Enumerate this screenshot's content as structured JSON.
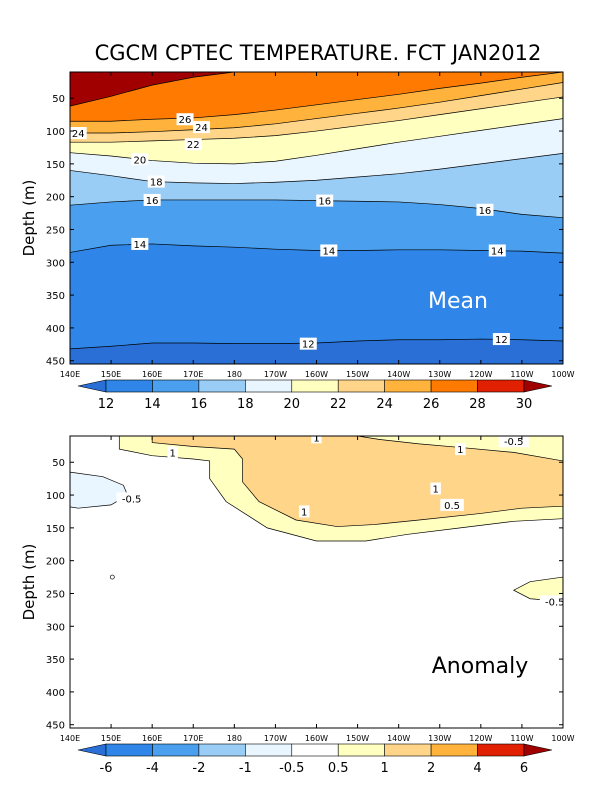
{
  "title": "CGCM CPTEC TEMPERATURE. FCT JAN2012",
  "chart_data": [
    {
      "type": "contour",
      "panel": "Mean",
      "label": "Mean",
      "ylabel": "Depth (m)",
      "xticks": [
        "140E",
        "150E",
        "160E",
        "170E",
        "180",
        "170W",
        "160W",
        "150W",
        "140W",
        "130W",
        "120W",
        "110W",
        "100W"
      ],
      "yticks": [
        "50",
        "100",
        "150",
        "200",
        "250",
        "300",
        "350",
        "400",
        "450"
      ],
      "xlim_lon": [
        140,
        260
      ],
      "ylim_depth": [
        455,
        10
      ],
      "levels": [
        12,
        14,
        16,
        18,
        20,
        22,
        24,
        26,
        28,
        30
      ],
      "colors": [
        "#2a6fd6",
        "#2f86e8",
        "#4aa0ee",
        "#99cdf6",
        "#e9f6ff",
        "#ffffc0",
        "#ffd58a",
        "#ffb33d",
        "#ff7a00",
        "#e02000",
        "#a00000"
      ],
      "contour_depths": {
        "x": [
          140,
          150,
          160,
          170,
          180,
          190,
          200,
          210,
          220,
          230,
          240,
          250,
          260
        ],
        "28": [
          62,
          47,
          30,
          18,
          10,
          10,
          10,
          10,
          10,
          10,
          10,
          10,
          10
        ],
        "26": [
          85,
          85,
          82,
          80,
          75,
          68,
          60,
          52,
          44,
          35,
          27,
          18,
          10
        ],
        "24": [
          103,
          103,
          101,
          98,
          95,
          89,
          81,
          73,
          65,
          56,
          46,
          36,
          26
        ],
        "22": [
          117,
          117,
          115,
          113,
          111,
          107,
          100,
          92,
          84,
          75,
          66,
          57,
          48
        ],
        "20": [
          133,
          138,
          145,
          149,
          150,
          146,
          137,
          127,
          117,
          108,
          99,
          90,
          81
        ],
        "18": [
          160,
          168,
          177,
          179,
          180,
          178,
          175,
          170,
          165,
          158,
          150,
          142,
          134
        ],
        "16": [
          213,
          208,
          205,
          205,
          205,
          205,
          206,
          207,
          208,
          212,
          218,
          227,
          232
        ],
        "14": [
          285,
          274,
          272,
          275,
          277,
          280,
          282,
          282,
          281,
          281,
          282,
          283,
          286
        ],
        "12": [
          432,
          428,
          423,
          423,
          424,
          424,
          423,
          420,
          418,
          418,
          417,
          418,
          420
        ]
      },
      "contour_labels": [
        {
          "text": "26",
          "lon": 168,
          "depth": 82
        },
        {
          "text": "24",
          "lon": 142,
          "depth": 103
        },
        {
          "text": "24",
          "lon": 172,
          "depth": 94
        },
        {
          "text": "22",
          "lon": 170,
          "depth": 120
        },
        {
          "text": "20",
          "lon": 157,
          "depth": 143
        },
        {
          "text": "18",
          "lon": 161,
          "depth": 177
        },
        {
          "text": "16",
          "lon": 160,
          "depth": 205
        },
        {
          "text": "16",
          "lon": 202,
          "depth": 206
        },
        {
          "text": "16",
          "lon": 241,
          "depth": 220
        },
        {
          "text": "14",
          "lon": 157,
          "depth": 272
        },
        {
          "text": "14",
          "lon": 203,
          "depth": 282
        },
        {
          "text": "14",
          "lon": 244,
          "depth": 282
        },
        {
          "text": "12",
          "lon": 198,
          "depth": 424
        },
        {
          "text": "12",
          "lon": 245,
          "depth": 417
        }
      ],
      "colorbar": {
        "ticks": [
          "12",
          "14",
          "16",
          "18",
          "20",
          "22",
          "24",
          "26",
          "28",
          "30"
        ]
      }
    },
    {
      "type": "contour",
      "panel": "Anomaly",
      "label": "Anomaly",
      "ylabel": "Depth (m)",
      "xticks": [
        "140E",
        "150E",
        "160E",
        "170E",
        "180",
        "170W",
        "160W",
        "150W",
        "140W",
        "130W",
        "120W",
        "110W",
        "100W"
      ],
      "yticks": [
        "50",
        "100",
        "150",
        "200",
        "250",
        "300",
        "350",
        "400",
        "450"
      ],
      "xlim_lon": [
        140,
        260
      ],
      "ylim_depth": [
        455,
        10
      ],
      "levels": [
        -6,
        -4,
        -2,
        -1,
        -0.5,
        0.5,
        1,
        2,
        4,
        6
      ],
      "colors": [
        "#2a6fd6",
        "#2f86e8",
        "#4aa0ee",
        "#99cdf6",
        "#e9f6ff",
        "#ffffff",
        "#ffffc0",
        "#ffd58a",
        "#ffb33d",
        "#e02000",
        "#a00000"
      ],
      "regions": [
        {
          "level": "0.5 to 1",
          "description": "positive anomaly band in upper ocean, 150E to 100W, surface to ~175 m"
        },
        {
          "level": "1 to 2",
          "description": "core positive anomaly, 160E to 100W, surface to ~150 m"
        },
        {
          "level": "-1 to -0.5",
          "description": "small negative pocket near 140E-150E, 70-120 m"
        }
      ],
      "contour_labels": [
        {
          "text": "1",
          "lon": 200,
          "depth": 12
        },
        {
          "text": "-0.5",
          "lon": 248,
          "depth": 18
        },
        {
          "text": "1",
          "lon": 165,
          "depth": 35
        },
        {
          "text": "1",
          "lon": 235,
          "depth": 30
        },
        {
          "text": "-0.5",
          "lon": 155,
          "depth": 105
        },
        {
          "text": "1",
          "lon": 229,
          "depth": 90
        },
        {
          "text": "0.5",
          "lon": 233,
          "depth": 115
        },
        {
          "text": "1",
          "lon": 197,
          "depth": 125
        },
        {
          "text": "-0.5",
          "lon": 258,
          "depth": 262
        }
      ],
      "colorbar": {
        "ticks": [
          "-6",
          "-4",
          "-2",
          "-1",
          "-0.5",
          "0.5",
          "1",
          "2",
          "4",
          "6"
        ]
      }
    }
  ]
}
